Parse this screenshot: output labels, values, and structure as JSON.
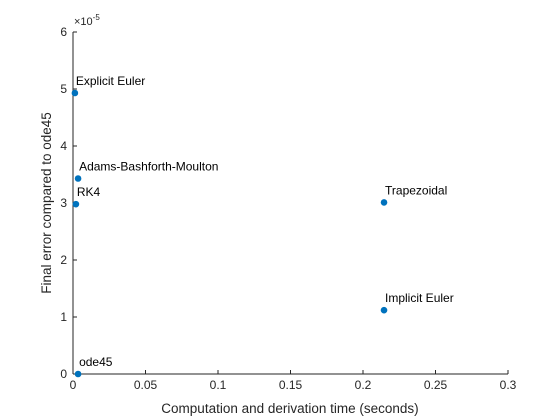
{
  "chart_data": {
    "type": "scatter",
    "xlabel": "Computation and derivation time (seconds)",
    "ylabel": "Final error compared to ode45",
    "xlim": [
      0,
      0.3
    ],
    "ylim": [
      0,
      6
    ],
    "y_exponent_label": {
      "base": "×10",
      "exp": "-5"
    },
    "x_ticks": [
      0,
      0.05,
      0.1,
      0.15,
      0.2,
      0.25,
      0.3
    ],
    "x_tick_labels": [
      "0",
      "0.05",
      "0.1",
      "0.15",
      "0.2",
      "0.25",
      "0.3"
    ],
    "y_ticks": [
      0,
      1,
      2,
      3,
      4,
      5,
      6
    ],
    "y_tick_labels": [
      "0",
      "1",
      "2",
      "3",
      "4",
      "5",
      "6"
    ],
    "grid": false,
    "marker_color": "#0072BD",
    "points": [
      {
        "label": "Explicit Euler",
        "x": 0.0013,
        "y": 4.93
      },
      {
        "label": "Adams-Bashforth-Moulton",
        "x": 0.0035,
        "y": 3.43
      },
      {
        "label": "RK4",
        "x": 0.002,
        "y": 2.98
      },
      {
        "label": "Trapezoidal",
        "x": 0.2145,
        "y": 3.01
      },
      {
        "label": "Implicit Euler",
        "x": 0.2145,
        "y": 1.12
      },
      {
        "label": "ode45",
        "x": 0.0035,
        "y": 0.0
      }
    ]
  }
}
